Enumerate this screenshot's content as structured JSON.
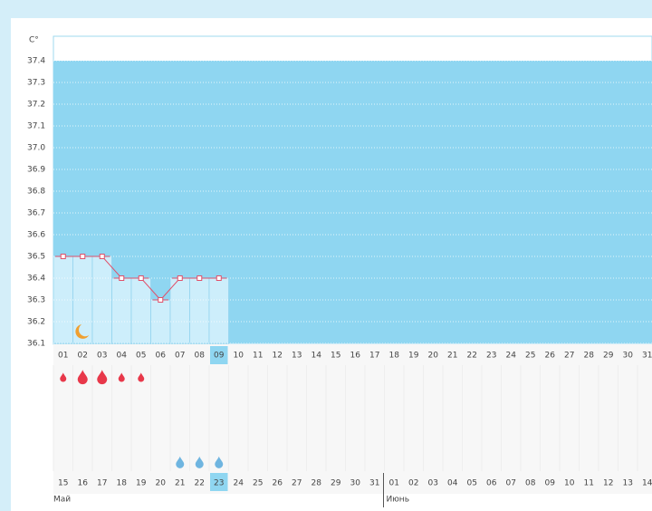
{
  "chart_data": {
    "type": "line",
    "y_label": "C°",
    "categories": [
      "01",
      "02",
      "03",
      "04",
      "05",
      "06",
      "07",
      "08",
      "09",
      "10",
      "11",
      "12",
      "13",
      "14",
      "15",
      "16",
      "17",
      "18",
      "19",
      "20",
      "21",
      "22",
      "23",
      "24",
      "25",
      "26",
      "27",
      "28",
      "29",
      "30",
      "31"
    ],
    "values": [
      36.5,
      36.5,
      36.5,
      36.4,
      36.4,
      36.3,
      36.4,
      36.4,
      36.4,
      null,
      null,
      null,
      null,
      null,
      null,
      null,
      null,
      null,
      null,
      null,
      null,
      null,
      null,
      null,
      null,
      null,
      null,
      null,
      null,
      null,
      null
    ],
    "selected_category": "09",
    "ylim": [
      36.1,
      37.4
    ],
    "yticks": [
      36.1,
      36.2,
      36.3,
      36.4,
      36.5,
      36.6,
      36.7,
      36.8,
      36.9,
      {
        "value": 37,
        "label": "37.0"
      },
      37.1,
      37.2,
      37.3,
      37.4
    ],
    "grid": true,
    "area_color": "#8fd6f1",
    "bar_color": "#cdeefb",
    "line_color": "#e0506a",
    "calendar": {
      "weekend_color": "#e8385a",
      "months": [
        {
          "label": "Май",
          "from": "15"
        },
        {
          "label": "Июнь",
          "from": "01"
        }
      ],
      "days": [
        {
          "date": "15",
          "bleeding": "light"
        },
        {
          "date": "16",
          "bleeding": "heavy",
          "moon": true
        },
        {
          "date": "17",
          "bleeding": "heavy"
        },
        {
          "date": "18",
          "weekend": true,
          "bleeding": "light"
        },
        {
          "date": "19",
          "weekend": true,
          "bleeding": "light"
        },
        {
          "date": "20"
        },
        {
          "date": "21",
          "discharge": true
        },
        {
          "date": "22",
          "discharge": true
        },
        {
          "date": "23",
          "discharge": true,
          "selected": true
        },
        {
          "date": "24"
        },
        {
          "date": "25",
          "weekend": true
        },
        {
          "date": "26",
          "weekend": true
        },
        {
          "date": "27"
        },
        {
          "date": "28"
        },
        {
          "date": "29"
        },
        {
          "date": "30"
        },
        {
          "date": "31"
        },
        {
          "date": "01",
          "weekend": true
        },
        {
          "date": "02",
          "weekend": true
        },
        {
          "date": "03"
        },
        {
          "date": "04"
        },
        {
          "date": "05"
        },
        {
          "date": "06"
        },
        {
          "date": "07"
        },
        {
          "date": "08",
          "weekend": true
        },
        {
          "date": "09",
          "weekend": true
        },
        {
          "date": "10"
        },
        {
          "date": "11"
        },
        {
          "date": "12"
        },
        {
          "date": "13"
        },
        {
          "date": "14"
        }
      ]
    }
  }
}
